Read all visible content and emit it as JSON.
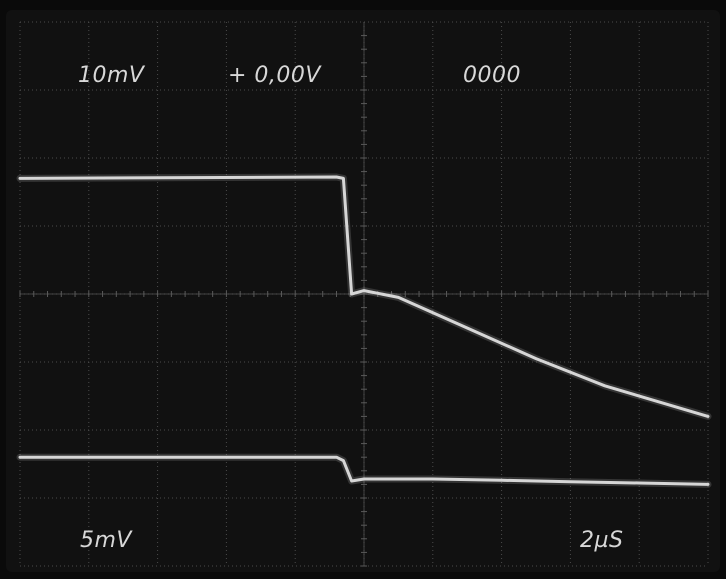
{
  "readout": {
    "ch1_scale": "10mV",
    "offset": "+ 0,00V",
    "counter": "0000",
    "ch2_scale": "5mV",
    "timebase": "2µS"
  },
  "colors": {
    "screen": "#111111",
    "trace": "#d6d6d6",
    "graticule": "#5a5a5a",
    "text": "#d8d8d8"
  },
  "chart_data": {
    "type": "line",
    "title": "",
    "xlabel": "",
    "ylabel": "",
    "xlim": [
      0,
      10
    ],
    "ylim": [
      -4,
      4
    ],
    "x_unit_per_div": "2µS",
    "grid": true,
    "series": [
      {
        "x": [
          0,
          4.6,
          4.7,
          4.82,
          5.0,
          5.5,
          6.5,
          7.5,
          8.5,
          10.0
        ],
        "y": [
          1.7,
          1.72,
          1.7,
          0.0,
          0.05,
          -0.05,
          -0.5,
          -0.95,
          -1.35,
          -1.8
        ]
      },
      {
        "x": [
          0,
          4.6,
          4.7,
          4.82,
          5.0,
          6.0,
          7.0,
          8.0,
          9.0,
          10.0
        ],
        "y": [
          -2.4,
          -2.4,
          -2.45,
          -2.75,
          -2.72,
          -2.72,
          -2.74,
          -2.76,
          -2.78,
          -2.8
        ]
      }
    ]
  }
}
